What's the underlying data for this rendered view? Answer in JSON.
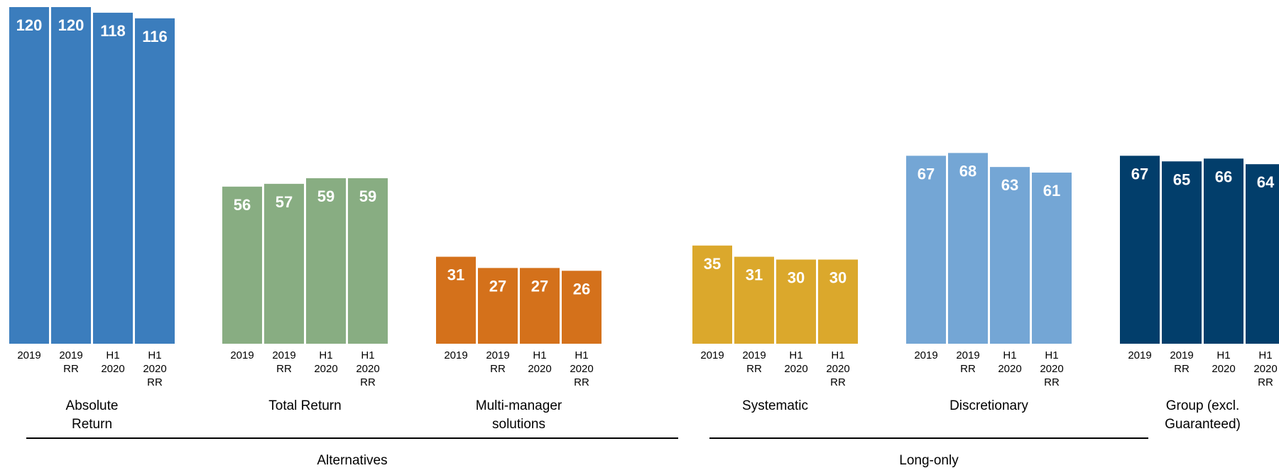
{
  "chart_data": {
    "type": "bar",
    "grid": false,
    "legend": "none",
    "ylim": [
      0,
      120
    ],
    "groups": [
      {
        "name": "Absolute Return",
        "color": "#3b7dbd",
        "categories": [
          "2019",
          "2019 RR",
          "H1 2020",
          "H1 2020 RR"
        ],
        "values": [
          120,
          120,
          118,
          116
        ]
      },
      {
        "name": "Total Return",
        "color": "#88ad82",
        "categories": [
          "2019",
          "2019 RR",
          "H1 2020",
          "H1 2020 RR"
        ],
        "values": [
          56,
          57,
          59,
          59
        ]
      },
      {
        "name": "Multi-manager solutions",
        "color": "#d4711b",
        "categories": [
          "2019",
          "2019 RR",
          "H1 2020",
          "H1 2020 RR"
        ],
        "values": [
          31,
          27,
          27,
          26
        ]
      },
      {
        "name": "Systematic",
        "color": "#dba82c",
        "categories": [
          "2019",
          "2019 RR",
          "H1 2020",
          "H1 2020 RR"
        ],
        "values": [
          35,
          31,
          30,
          30
        ]
      },
      {
        "name": "Discretionary",
        "color": "#74a6d5",
        "categories": [
          "2019",
          "2019 RR",
          "H1 2020",
          "H1 2020 RR"
        ],
        "values": [
          67,
          68,
          63,
          61
        ]
      },
      {
        "name": "Group (excl. Guaranteed)",
        "color": "#023e6b",
        "categories": [
          "2019",
          "2019 RR",
          "H1 2020",
          "H1 2020 RR"
        ],
        "values": [
          67,
          65,
          66,
          64
        ]
      }
    ],
    "brackets": [
      {
        "label": "Alternatives",
        "groups": [
          "Absolute Return",
          "Total Return",
          "Multi-manager solutions"
        ]
      },
      {
        "label": "Long-only",
        "groups": [
          "Systematic",
          "Discretionary"
        ]
      }
    ]
  }
}
